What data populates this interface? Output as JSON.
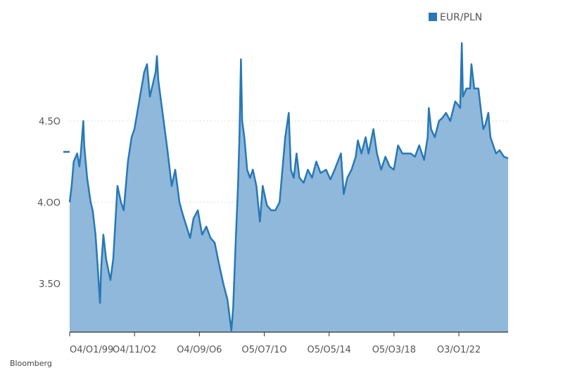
{
  "source": "Bloomberg",
  "colors": {
    "line": "#2878b5",
    "area": "#8fb8db",
    "grid": "#dddddd",
    "axis": "#333333",
    "text": "#555555"
  },
  "chart_data": {
    "type": "area",
    "title": "",
    "xlabel": "",
    "ylabel": "",
    "ylim": [
      3.2,
      5.05
    ],
    "grid": true,
    "legend_position": "top-right",
    "series": [
      {
        "name": "EUR/PLN",
        "points": [
          [
            "1999-01-04",
            4.0
          ],
          [
            "1999-02-15",
            4.1
          ],
          [
            "1999-04-01",
            4.25
          ],
          [
            "1999-06-15",
            4.3
          ],
          [
            "1999-08-01",
            4.22
          ],
          [
            "1999-09-01",
            4.3
          ],
          [
            "1999-10-25",
            4.5
          ],
          [
            "1999-11-15",
            4.35
          ],
          [
            "2000-01-15",
            4.15
          ],
          [
            "2000-04-01",
            4.0
          ],
          [
            "2000-05-15",
            3.95
          ],
          [
            "2000-07-15",
            3.8
          ],
          [
            "2000-09-01",
            3.6
          ],
          [
            "2000-10-20",
            3.38
          ],
          [
            "2000-11-15",
            3.6
          ],
          [
            "2001-01-01",
            3.8
          ],
          [
            "2001-03-01",
            3.65
          ],
          [
            "2001-06-01",
            3.52
          ],
          [
            "2001-08-01",
            3.65
          ],
          [
            "2001-11-01",
            4.1
          ],
          [
            "2002-01-15",
            4.0
          ],
          [
            "2002-03-15",
            3.95
          ],
          [
            "2002-06-15",
            4.25
          ],
          [
            "2002-09-01",
            4.4
          ],
          [
            "2002-11-01",
            4.45
          ],
          [
            "2003-03-01",
            4.65
          ],
          [
            "2003-06-01",
            4.8
          ],
          [
            "2003-08-01",
            4.85
          ],
          [
            "2003-10-01",
            4.65
          ],
          [
            "2004-02-01",
            4.8
          ],
          [
            "2004-03-01",
            4.9
          ],
          [
            "2004-04-01",
            4.75
          ],
          [
            "2004-07-01",
            4.55
          ],
          [
            "2004-10-01",
            4.35
          ],
          [
            "2005-01-15",
            4.1
          ],
          [
            "2005-04-01",
            4.2
          ],
          [
            "2005-07-01",
            4.0
          ],
          [
            "2005-09-15",
            3.92
          ],
          [
            "2005-12-01",
            3.85
          ],
          [
            "2006-02-15",
            3.78
          ],
          [
            "2006-05-01",
            3.9
          ],
          [
            "2006-08-01",
            3.95
          ],
          [
            "2006-11-01",
            3.8
          ],
          [
            "2007-02-01",
            3.85
          ],
          [
            "2007-05-01",
            3.78
          ],
          [
            "2007-08-01",
            3.75
          ],
          [
            "2007-11-01",
            3.62
          ],
          [
            "2008-02-01",
            3.5
          ],
          [
            "2008-05-01",
            3.4
          ],
          [
            "2008-07-25",
            3.21
          ],
          [
            "2008-09-01",
            3.35
          ],
          [
            "2008-11-01",
            3.8
          ],
          [
            "2008-12-15",
            4.1
          ],
          [
            "2009-01-15",
            4.4
          ],
          [
            "2009-02-17",
            4.88
          ],
          [
            "2009-03-15",
            4.5
          ],
          [
            "2009-05-01",
            4.4
          ],
          [
            "2009-07-01",
            4.2
          ],
          [
            "2009-09-01",
            4.15
          ],
          [
            "2009-11-01",
            4.2
          ],
          [
            "2010-01-15",
            4.1
          ],
          [
            "2010-04-01",
            3.88
          ],
          [
            "2010-06-01",
            4.1
          ],
          [
            "2010-09-01",
            3.98
          ],
          [
            "2010-12-01",
            3.95
          ],
          [
            "2011-03-01",
            3.95
          ],
          [
            "2011-06-01",
            4.0
          ],
          [
            "2011-08-01",
            4.2
          ],
          [
            "2011-10-01",
            4.4
          ],
          [
            "2011-12-15",
            4.55
          ],
          [
            "2012-02-01",
            4.2
          ],
          [
            "2012-04-01",
            4.15
          ],
          [
            "2012-06-01",
            4.3
          ],
          [
            "2012-08-01",
            4.15
          ],
          [
            "2012-11-01",
            4.12
          ],
          [
            "2013-02-01",
            4.2
          ],
          [
            "2013-05-01",
            4.15
          ],
          [
            "2013-08-01",
            4.25
          ],
          [
            "2013-11-01",
            4.18
          ],
          [
            "2014-03-01",
            4.2
          ],
          [
            "2014-06-01",
            4.14
          ],
          [
            "2014-09-01",
            4.2
          ],
          [
            "2015-01-15",
            4.3
          ],
          [
            "2015-03-15",
            4.05
          ],
          [
            "2015-06-01",
            4.15
          ],
          [
            "2015-09-01",
            4.2
          ],
          [
            "2015-12-01",
            4.28
          ],
          [
            "2016-01-15",
            4.38
          ],
          [
            "2016-04-01",
            4.3
          ],
          [
            "2016-07-01",
            4.4
          ],
          [
            "2016-09-01",
            4.3
          ],
          [
            "2016-12-15",
            4.45
          ],
          [
            "2017-03-01",
            4.3
          ],
          [
            "2017-06-01",
            4.2
          ],
          [
            "2017-09-01",
            4.28
          ],
          [
            "2017-12-01",
            4.22
          ],
          [
            "2018-03-01",
            4.2
          ],
          [
            "2018-06-01",
            4.35
          ],
          [
            "2018-09-01",
            4.3
          ],
          [
            "2018-12-15",
            4.3
          ],
          [
            "2019-03-01",
            4.3
          ],
          [
            "2019-06-01",
            4.28
          ],
          [
            "2019-09-01",
            4.35
          ],
          [
            "2019-12-15",
            4.26
          ],
          [
            "2020-03-01",
            4.4
          ],
          [
            "2020-03-25",
            4.58
          ],
          [
            "2020-05-15",
            4.45
          ],
          [
            "2020-08-01",
            4.4
          ],
          [
            "2020-11-01",
            4.5
          ],
          [
            "2021-01-15",
            4.52
          ],
          [
            "2021-04-01",
            4.55
          ],
          [
            "2021-07-01",
            4.5
          ],
          [
            "2021-10-15",
            4.62
          ],
          [
            "2021-12-15",
            4.6
          ],
          [
            "2022-02-01",
            4.58
          ],
          [
            "2022-03-07",
            4.98
          ],
          [
            "2022-04-01",
            4.65
          ],
          [
            "2022-06-15",
            4.7
          ],
          [
            "2022-09-01",
            4.7
          ],
          [
            "2022-10-01",
            4.85
          ],
          [
            "2022-12-01",
            4.7
          ],
          [
            "2023-03-01",
            4.7
          ],
          [
            "2023-05-01",
            4.55
          ],
          [
            "2023-06-15",
            4.45
          ],
          [
            "2023-08-01",
            4.48
          ],
          [
            "2023-10-01",
            4.55
          ],
          [
            "2023-11-15",
            4.4
          ],
          [
            "2024-01-15",
            4.35
          ],
          [
            "2024-03-15",
            4.3
          ],
          [
            "2024-06-01",
            4.32
          ],
          [
            "2024-09-01",
            4.28
          ],
          [
            "2024-12-01",
            4.27
          ]
        ]
      }
    ],
    "y_ticks": [
      {
        "value": 3.5,
        "label": "3.5O"
      },
      {
        "value": 4.0,
        "label": "4.OO"
      },
      {
        "value": 4.5,
        "label": "4.5O"
      }
    ],
    "x_ticks": [
      {
        "date": "1999-01-04",
        "label": "O4/O1/99"
      },
      {
        "date": "2002-11-04",
        "label": "O4/11/O2"
      },
      {
        "date": "2006-09-04",
        "label": "O4/O9/O6"
      },
      {
        "date": "2010-07-05",
        "label": "O5/O7/1O"
      },
      {
        "date": "2014-05-05",
        "label": "O5/O5/14"
      },
      {
        "date": "2018-03-05",
        "label": "O5/O3/18"
      },
      {
        "date": "2022-01-03",
        "label": "O3/O1/22"
      }
    ],
    "xlim": [
      "1999-01-04",
      "2024-12-01"
    ],
    "current_marker_value": 4.31
  }
}
